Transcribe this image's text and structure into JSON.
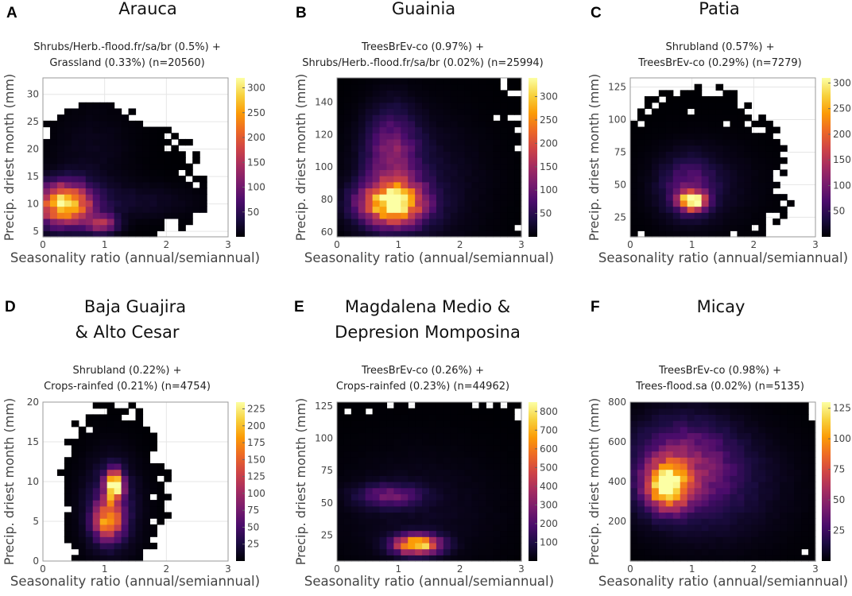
{
  "figure": {
    "colormap": [
      "#000004",
      "#1b0c41",
      "#4a0c6b",
      "#781c6d",
      "#a52c60",
      "#cf4446",
      "#ed6925",
      "#fb9b06",
      "#f7d13d",
      "#fcffa4"
    ]
  },
  "chart_data": [
    {
      "type": "heatmap",
      "panel_label": "A",
      "title": "Arauca",
      "composition": [
        "Shrubs/Herb.-flood.fr/sa/br (0.5%) +",
        "Grassland (0.33%)  (n=20560)"
      ],
      "xlabel": "Seasonality ratio (annual/semiannual)",
      "ylabel": "Precip. driest month (mm)",
      "xlim": [
        0,
        3
      ],
      "ylim": [
        4,
        33
      ],
      "xticks": [
        0,
        1,
        2,
        3
      ],
      "yticks": [
        5,
        10,
        15,
        20,
        25,
        30
      ],
      "colorbar": {
        "max": 320,
        "ticks": [
          50,
          100,
          150,
          200,
          250,
          300
        ]
      },
      "blobs": [
        {
          "x": 0.35,
          "y": 10,
          "sx": 0.3,
          "sy": 2.6,
          "a": 300
        },
        {
          "x": 0.95,
          "y": 6.5,
          "sx": 0.18,
          "sy": 1.2,
          "a": 140
        },
        {
          "x": 1.4,
          "y": 10.5,
          "sx": 0.7,
          "sy": 2.2,
          "a": 22
        },
        {
          "x": 0.8,
          "y": 19,
          "sx": 0.45,
          "sy": 6,
          "a": 14
        }
      ],
      "cloud": {
        "x": 0.9,
        "y": 14,
        "sx": 1.0,
        "sy": 8,
        "thr": 0.03,
        "xmax": 3.0,
        "ymax": 33
      }
    },
    {
      "type": "heatmap",
      "panel_label": "B",
      "title": "Guainia",
      "composition": [
        "TreesBrEv-co (0.97%) +",
        "Shrubs/Herb.-flood.fr/sa/br (0.02%)  (n=25994)"
      ],
      "xlabel": "Seasonality ratio (annual/semiannual)",
      "ylabel": "Precip. driest month (mm)",
      "xlim": [
        0,
        3
      ],
      "ylim": [
        57,
        155
      ],
      "xticks": [
        0,
        1,
        2,
        3
      ],
      "yticks": [
        60,
        80,
        100,
        120,
        140
      ],
      "colorbar": {
        "max": 340,
        "ticks": [
          50,
          100,
          150,
          200,
          250,
          300
        ]
      },
      "blobs": [
        {
          "x": 0.9,
          "y": 78,
          "sx": 0.35,
          "sy": 9,
          "a": 330
        },
        {
          "x": 0.9,
          "y": 108,
          "sx": 0.28,
          "sy": 18,
          "a": 110
        },
        {
          "x": 1.3,
          "y": 90,
          "sx": 0.7,
          "sy": 28,
          "a": 28
        }
      ],
      "cloud": {
        "x": 1.1,
        "y": 100,
        "sx": 1.5,
        "sy": 60,
        "thr": 0.05,
        "xmax": 3.0,
        "ymax": 155
      }
    },
    {
      "type": "heatmap",
      "panel_label": "C",
      "title": "Patia",
      "composition": [
        "Shrubland (0.57%) +",
        "TreesBrEv-co (0.29%)  (n=7279)"
      ],
      "xlabel": "Seasonality ratio (annual/semiannual)",
      "ylabel": "Precip. driest month (mm)",
      "xlim": [
        0,
        3
      ],
      "ylim": [
        10,
        132
      ],
      "xticks": [
        0,
        1,
        2,
        3
      ],
      "yticks": [
        25,
        50,
        75,
        100,
        125
      ],
      "colorbar": {
        "max": 310,
        "ticks": [
          50,
          100,
          150,
          200,
          250,
          300
        ]
      },
      "blobs": [
        {
          "x": 1.0,
          "y": 38,
          "sx": 0.14,
          "sy": 5,
          "a": 300
        },
        {
          "x": 0.95,
          "y": 48,
          "sx": 0.3,
          "sy": 15,
          "a": 70
        },
        {
          "x": 1.2,
          "y": 50,
          "sx": 0.6,
          "sy": 22,
          "a": 18
        }
      ],
      "cloud": {
        "x": 1.0,
        "y": 55,
        "sx": 0.95,
        "sy": 42,
        "thr": 0.04,
        "xmax": 3.0,
        "ymax": 132
      }
    },
    {
      "type": "heatmap",
      "panel_label": "D",
      "title": "Baja Guajira",
      "title2": "& Alto Cesar",
      "composition": [
        "Shrubland (0.22%) +",
        "Crops-rainfed (0.21%)  (n=4754)"
      ],
      "xlabel": "Seasonality ratio (annual/semiannual)",
      "ylabel": "Precip. driest month (mm)",
      "xlim": [
        0,
        3
      ],
      "ylim": [
        0,
        20
      ],
      "xticks": [
        0,
        1,
        2,
        3
      ],
      "yticks": [
        0,
        5,
        10,
        15,
        20
      ],
      "colorbar": {
        "max": 235,
        "ticks": [
          25,
          50,
          75,
          100,
          125,
          150,
          175,
          200,
          225
        ]
      },
      "blobs": [
        {
          "x": 1.15,
          "y": 9.5,
          "sx": 0.1,
          "sy": 1.3,
          "a": 230
        },
        {
          "x": 1.05,
          "y": 5.2,
          "sx": 0.16,
          "sy": 1.6,
          "a": 160
        },
        {
          "x": 1.1,
          "y": 7,
          "sx": 0.3,
          "sy": 4,
          "a": 40
        }
      ],
      "cloud": {
        "x": 1.15,
        "y": 9,
        "sx": 0.55,
        "sy": 7,
        "thr": 0.06,
        "xmax": 2.9,
        "ymax": 20
      }
    },
    {
      "type": "heatmap",
      "panel_label": "E",
      "title": "Magdalena Medio &",
      "title2": "Depresion Momposina",
      "composition": [
        "TreesBrEv-co (0.26%) +",
        "Crops-rainfed (0.23%)  (n=44962)"
      ],
      "xlabel": "Seasonality ratio (annual/semiannual)",
      "ylabel": "Precip. driest month (mm)",
      "xlim": [
        0,
        3
      ],
      "ylim": [
        5,
        128
      ],
      "xticks": [
        0,
        1,
        2,
        3
      ],
      "yticks": [
        25,
        50,
        75,
        100,
        125
      ],
      "colorbar": {
        "max": 850,
        "ticks": [
          100,
          200,
          300,
          400,
          500,
          600,
          700,
          800
        ]
      },
      "blobs": [
        {
          "x": 1.3,
          "y": 18,
          "sx": 0.25,
          "sy": 5,
          "a": 800
        },
        {
          "x": 0.85,
          "y": 56,
          "sx": 0.35,
          "sy": 6,
          "a": 230
        },
        {
          "x": 1.3,
          "y": 45,
          "sx": 0.9,
          "sy": 32,
          "a": 45
        }
      ],
      "cloud": {
        "x": 1.4,
        "y": 55,
        "sx": 1.8,
        "sy": 60,
        "thr": 0.05,
        "xmax": 3.0,
        "ymax": 128
      }
    },
    {
      "type": "heatmap",
      "panel_label": "F",
      "title": "Micay",
      "composition": [
        "TreesBrEv-co (0.98%) +",
        "Trees-flood.sa (0.02%)  (n=5135)"
      ],
      "xlabel": "Seasonality ratio (annual/semiannual)",
      "ylabel": "Precip. driest month (mm)",
      "xlim": [
        0,
        3
      ],
      "ylim": [
        0,
        800
      ],
      "xticks": [
        0,
        1,
        2,
        3
      ],
      "yticks": [
        200,
        400,
        600,
        800
      ],
      "colorbar": {
        "max": 130,
        "ticks": [
          25,
          50,
          75,
          100,
          125
        ]
      },
      "blobs": [
        {
          "x": 0.6,
          "y": 380,
          "sx": 0.22,
          "sy": 75,
          "a": 125
        },
        {
          "x": 0.85,
          "y": 480,
          "sx": 0.55,
          "sy": 150,
          "a": 45
        },
        {
          "x": 1.4,
          "y": 380,
          "sx": 0.8,
          "sy": 200,
          "a": 12
        }
      ],
      "cloud": {
        "x": 1.3,
        "y": 400,
        "sx": 1.5,
        "sy": 400,
        "thr": 0.02,
        "xmax": 3.0,
        "ymax": 800
      }
    }
  ]
}
